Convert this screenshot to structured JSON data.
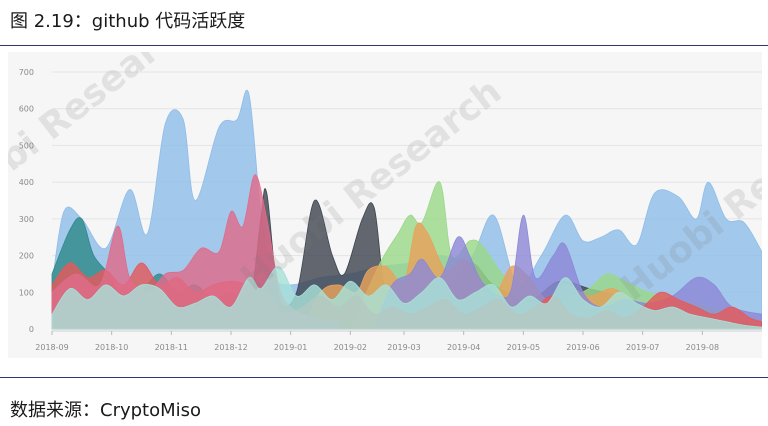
{
  "title": "图 2.19：github 代码活跃度",
  "source": "数据来源：CryptoMiso",
  "watermark": "Huobi Research",
  "chart_data": {
    "type": "area",
    "title": "",
    "xlabel": "",
    "ylabel": "",
    "ylim": [
      0,
      700
    ],
    "yticks": [
      0,
      100,
      200,
      300,
      400,
      500,
      600,
      700
    ],
    "xlim": [
      0,
      11.9
    ],
    "xticks": [
      {
        "label": "2018-09",
        "pos": 0
      },
      {
        "label": "2018-10",
        "pos": 1
      },
      {
        "label": "2018-11",
        "pos": 2
      },
      {
        "label": "2018-12",
        "pos": 3
      },
      {
        "label": "2019-01",
        "pos": 4
      },
      {
        "label": "2019-02",
        "pos": 5
      },
      {
        "label": "2019-03",
        "pos": 5.9
      },
      {
        "label": "2019-04",
        "pos": 6.9
      },
      {
        "label": "2019-05",
        "pos": 7.9
      },
      {
        "label": "2019-06",
        "pos": 8.9
      },
      {
        "label": "2019-07",
        "pos": 9.9
      },
      {
        "label": "2019-08",
        "pos": 10.9
      }
    ],
    "grid": true,
    "legend": "none",
    "series": [
      {
        "color": "#8fbde8",
        "points": [
          [
            0,
            120
          ],
          [
            0.2,
            320
          ],
          [
            0.5,
            300
          ],
          [
            0.9,
            220
          ],
          [
            1.3,
            380
          ],
          [
            1.6,
            260
          ],
          [
            1.9,
            560
          ],
          [
            2.2,
            570
          ],
          [
            2.4,
            350
          ],
          [
            2.8,
            550
          ],
          [
            3.1,
            570
          ],
          [
            3.3,
            640
          ],
          [
            3.5,
            320
          ],
          [
            3.7,
            150
          ],
          [
            4,
            120
          ],
          [
            4.5,
            140
          ],
          [
            5,
            150
          ],
          [
            5.5,
            170
          ],
          [
            6,
            180
          ],
          [
            6.5,
            200
          ],
          [
            7,
            190
          ],
          [
            7.4,
            310
          ],
          [
            7.8,
            120
          ],
          [
            8.2,
            200
          ],
          [
            8.6,
            310
          ],
          [
            8.9,
            240
          ],
          [
            9.2,
            250
          ],
          [
            9.5,
            270
          ],
          [
            9.8,
            230
          ],
          [
            10.1,
            370
          ],
          [
            10.5,
            360
          ],
          [
            10.8,
            300
          ],
          [
            11,
            400
          ],
          [
            11.3,
            300
          ],
          [
            11.6,
            290
          ],
          [
            11.9,
            210
          ]
        ]
      },
      {
        "color": "#3f4550",
        "points": [
          [
            3.3,
            0
          ],
          [
            3.5,
            300
          ],
          [
            3.6,
            370
          ],
          [
            3.8,
            90
          ],
          [
            4.1,
            100
          ],
          [
            4.4,
            350
          ],
          [
            4.7,
            200
          ],
          [
            4.9,
            150
          ],
          [
            5.2,
            300
          ],
          [
            5.4,
            330
          ],
          [
            5.6,
            100
          ],
          [
            6,
            60
          ],
          [
            6.5,
            90
          ],
          [
            7,
            180
          ],
          [
            7.4,
            120
          ],
          [
            8,
            80
          ],
          [
            8.5,
            130
          ],
          [
            9,
            110
          ],
          [
            9.5,
            90
          ],
          [
            10,
            60
          ],
          [
            10.5,
            40
          ],
          [
            11,
            30
          ],
          [
            11.5,
            20
          ],
          [
            11.9,
            10
          ]
        ]
      },
      {
        "color": "#2f8a8a",
        "points": [
          [
            0,
            150
          ],
          [
            0.3,
            270
          ],
          [
            0.5,
            300
          ],
          [
            0.7,
            200
          ],
          [
            1,
            140
          ],
          [
            1.2,
            60
          ],
          [
            1.5,
            100
          ],
          [
            1.8,
            150
          ],
          [
            2.1,
            100
          ],
          [
            2.4,
            120
          ],
          [
            2.7,
            80
          ],
          [
            3,
            100
          ],
          [
            3.3,
            60
          ],
          [
            3.5,
            40
          ]
        ]
      },
      {
        "color": "#9bd88a",
        "points": [
          [
            5,
            0
          ],
          [
            5.5,
            180
          ],
          [
            5.8,
            260
          ],
          [
            6,
            310
          ],
          [
            6.2,
            290
          ],
          [
            6.5,
            400
          ],
          [
            6.7,
            200
          ],
          [
            7,
            240
          ],
          [
            7.2,
            230
          ],
          [
            7.5,
            160
          ],
          [
            7.8,
            100
          ],
          [
            8.2,
            60
          ],
          [
            8.6,
            80
          ],
          [
            9,
            110
          ],
          [
            9.3,
            150
          ],
          [
            9.6,
            130
          ],
          [
            10,
            100
          ],
          [
            10.5,
            80
          ],
          [
            11,
            60
          ],
          [
            11.5,
            40
          ],
          [
            11.9,
            20
          ]
        ]
      },
      {
        "color": "#e8a25a",
        "points": [
          [
            4.2,
            0
          ],
          [
            4.5,
            100
          ],
          [
            4.8,
            120
          ],
          [
            5.1,
            100
          ],
          [
            5.3,
            160
          ],
          [
            5.6,
            170
          ],
          [
            5.9,
            130
          ],
          [
            6.1,
            280
          ],
          [
            6.3,
            260
          ],
          [
            6.6,
            160
          ],
          [
            6.9,
            190
          ],
          [
            7.1,
            150
          ],
          [
            7.4,
            90
          ],
          [
            7.7,
            170
          ],
          [
            8,
            140
          ],
          [
            8.3,
            80
          ],
          [
            8.6,
            120
          ],
          [
            9,
            90
          ],
          [
            9.4,
            110
          ],
          [
            9.8,
            70
          ],
          [
            10.2,
            60
          ],
          [
            10.6,
            40
          ],
          [
            11,
            30
          ],
          [
            11.4,
            20
          ],
          [
            11.9,
            10
          ]
        ]
      },
      {
        "color": "#8d89d6",
        "points": [
          [
            5.4,
            0
          ],
          [
            5.7,
            120
          ],
          [
            6,
            150
          ],
          [
            6.2,
            190
          ],
          [
            6.5,
            140
          ],
          [
            6.8,
            250
          ],
          [
            7,
            200
          ],
          [
            7.2,
            130
          ],
          [
            7.5,
            90
          ],
          [
            7.7,
            110
          ],
          [
            7.9,
            310
          ],
          [
            8.1,
            140
          ],
          [
            8.4,
            200
          ],
          [
            8.6,
            230
          ],
          [
            8.9,
            100
          ],
          [
            9.2,
            60
          ],
          [
            9.6,
            80
          ],
          [
            10,
            70
          ],
          [
            10.4,
            90
          ],
          [
            10.8,
            140
          ],
          [
            11.1,
            120
          ],
          [
            11.4,
            60
          ],
          [
            11.9,
            40
          ]
        ]
      },
      {
        "color": "#e45a5a",
        "points": [
          [
            0,
            120
          ],
          [
            0.3,
            180
          ],
          [
            0.6,
            140
          ],
          [
            0.9,
            160
          ],
          [
            1.2,
            120
          ],
          [
            1.5,
            180
          ],
          [
            1.8,
            120
          ],
          [
            2.1,
            140
          ],
          [
            2.4,
            100
          ],
          [
            2.7,
            120
          ],
          [
            3,
            130
          ],
          [
            3.3,
            120
          ],
          [
            3.6,
            100
          ],
          [
            3.9,
            40
          ],
          [
            4.2,
            60
          ],
          [
            4.5,
            90
          ],
          [
            4.8,
            60
          ],
          [
            5.1,
            90
          ],
          [
            5.4,
            40
          ],
          [
            5.7,
            60
          ],
          [
            6,
            40
          ],
          [
            6.3,
            60
          ],
          [
            6.6,
            80
          ],
          [
            6.9,
            40
          ],
          [
            7.2,
            60
          ],
          [
            7.5,
            80
          ],
          [
            7.8,
            40
          ],
          [
            8.1,
            60
          ],
          [
            8.4,
            90
          ],
          [
            8.7,
            40
          ],
          [
            9,
            30
          ],
          [
            9.3,
            50
          ],
          [
            9.6,
            30
          ],
          [
            9.9,
            60
          ],
          [
            10.2,
            100
          ],
          [
            10.5,
            80
          ],
          [
            10.8,
            60
          ],
          [
            11.1,
            40
          ],
          [
            11.4,
            60
          ],
          [
            11.7,
            30
          ],
          [
            11.9,
            20
          ]
        ]
      },
      {
        "color": "#df6b8a",
        "points": [
          [
            0,
            100
          ],
          [
            0.4,
            150
          ],
          [
            0.8,
            120
          ],
          [
            1.1,
            280
          ],
          [
            1.3,
            140
          ],
          [
            1.6,
            100
          ],
          [
            1.9,
            150
          ],
          [
            2.2,
            160
          ],
          [
            2.5,
            220
          ],
          [
            2.8,
            210
          ],
          [
            3,
            320
          ],
          [
            3.2,
            280
          ],
          [
            3.4,
            420
          ],
          [
            3.6,
            300
          ],
          [
            3.8,
            120
          ],
          [
            4,
            60
          ],
          [
            4.4,
            30
          ],
          [
            4.8,
            20
          ]
        ]
      },
      {
        "color": "#a8e0d8",
        "points": [
          [
            0,
            40
          ],
          [
            0.3,
            110
          ],
          [
            0.6,
            80
          ],
          [
            0.9,
            120
          ],
          [
            1.2,
            90
          ],
          [
            1.5,
            120
          ],
          [
            1.8,
            110
          ],
          [
            2.1,
            60
          ],
          [
            2.4,
            70
          ],
          [
            2.7,
            90
          ],
          [
            3,
            60
          ],
          [
            3.3,
            140
          ],
          [
            3.5,
            110
          ],
          [
            3.8,
            170
          ],
          [
            4.1,
            90
          ],
          [
            4.4,
            120
          ],
          [
            4.7,
            80
          ],
          [
            5,
            130
          ],
          [
            5.3,
            90
          ],
          [
            5.6,
            120
          ],
          [
            5.9,
            70
          ],
          [
            6.2,
            100
          ],
          [
            6.5,
            140
          ],
          [
            6.8,
            80
          ],
          [
            7.1,
            100
          ],
          [
            7.4,
            120
          ],
          [
            7.7,
            60
          ],
          [
            8,
            90
          ],
          [
            8.3,
            70
          ],
          [
            8.6,
            140
          ],
          [
            8.9,
            80
          ],
          [
            9.2,
            60
          ],
          [
            9.5,
            100
          ],
          [
            9.8,
            70
          ],
          [
            10.1,
            50
          ],
          [
            10.4,
            60
          ],
          [
            10.7,
            40
          ],
          [
            11,
            30
          ],
          [
            11.3,
            20
          ],
          [
            11.6,
            10
          ],
          [
            11.9,
            5
          ]
        ]
      }
    ]
  }
}
